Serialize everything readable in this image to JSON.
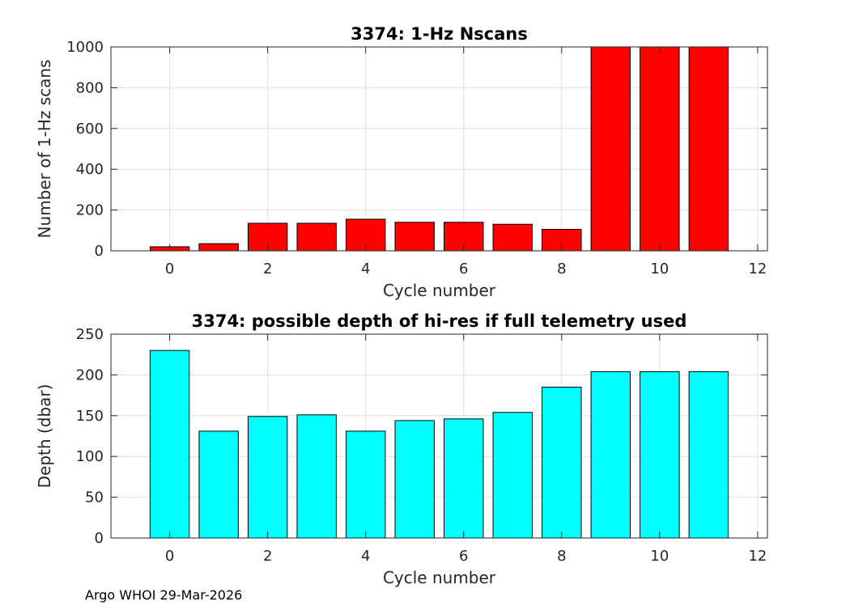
{
  "footer": "Argo WHOI 29-Mar-2026",
  "chart_data": [
    {
      "type": "bar",
      "title": "3374: 1-Hz Nscans",
      "xlabel": "Cycle number",
      "ylabel": "Number of 1-Hz scans",
      "x": [
        0,
        1,
        2,
        3,
        4,
        5,
        6,
        7,
        8,
        9,
        10,
        11
      ],
      "values": [
        20,
        35,
        135,
        135,
        155,
        140,
        140,
        130,
        105,
        1000,
        1000,
        1000
      ],
      "xlim": [
        -1.2,
        12.2
      ],
      "ylim": [
        0,
        1000
      ],
      "xticks": [
        0,
        2,
        4,
        6,
        8,
        10,
        12
      ],
      "yticks": [
        0,
        200,
        400,
        600,
        800,
        1000
      ],
      "grid": true,
      "color": "#ff0000"
    },
    {
      "type": "bar",
      "title": "3374: possible depth of hi-res if full telemetry used",
      "xlabel": "Cycle number",
      "ylabel": "Depth (dbar)",
      "x": [
        0,
        1,
        2,
        3,
        4,
        5,
        6,
        7,
        8,
        9,
        10,
        11
      ],
      "values": [
        230,
        131,
        149,
        151,
        131,
        144,
        146,
        154,
        185,
        204,
        204,
        204
      ],
      "xlim": [
        -1.2,
        12.2
      ],
      "ylim": [
        0,
        250
      ],
      "xticks": [
        0,
        2,
        4,
        6,
        8,
        10,
        12
      ],
      "yticks": [
        0,
        50,
        100,
        150,
        200,
        250
      ],
      "grid": true,
      "color": "#00ffff"
    }
  ]
}
